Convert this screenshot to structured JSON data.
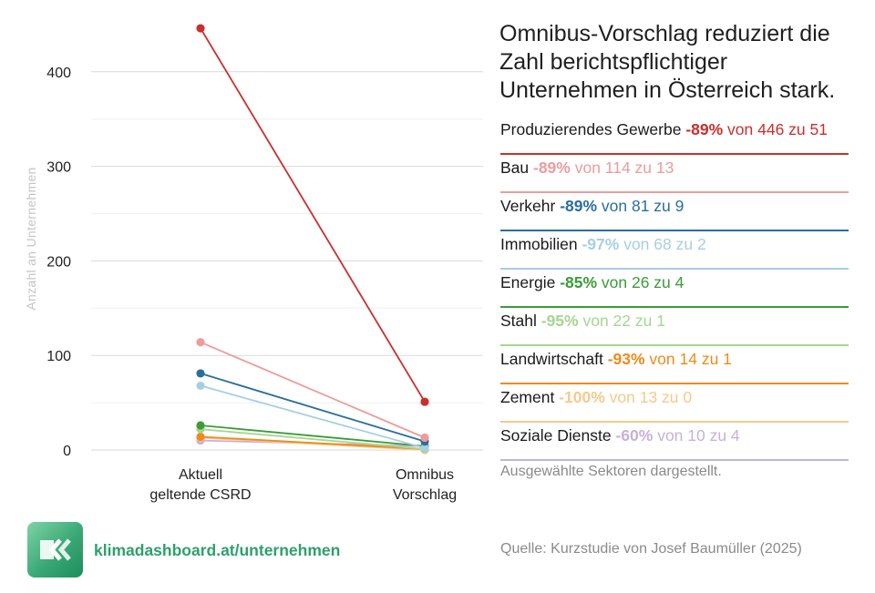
{
  "title": "Omnibus-Vorschlag reduziert die Zahl berichtspflichtiger Unternehmen in Österreich stark.",
  "chart_data": {
    "type": "line",
    "categories": [
      "Aktuell geltende CSRD",
      "Omnibus Vorschlag"
    ],
    "category_lines": [
      [
        "Aktuell",
        "geltende CSRD"
      ],
      [
        "Omnibus",
        "Vorschlag"
      ]
    ],
    "ylabel": "Anzahl an Unternehmen",
    "ylim": [
      0,
      445
    ],
    "yticks": [
      0,
      100,
      200,
      300,
      400
    ],
    "grid": true,
    "series": [
      {
        "name": "Produzierendes Gewerbe",
        "values": [
          446,
          51
        ],
        "color": "#c9302c",
        "pct": "-89%",
        "change": "von 446 zu 51"
      },
      {
        "name": "Bau",
        "values": [
          114,
          13
        ],
        "color": "#ec9c9c",
        "pct": "-89%",
        "change": "von 114 zu 13"
      },
      {
        "name": "Verkehr",
        "values": [
          81,
          9
        ],
        "color": "#2a6e9c",
        "pct": "-89%",
        "change": "von 81 zu 9"
      },
      {
        "name": "Immobilien",
        "values": [
          68,
          2
        ],
        "color": "#a8cee2",
        "pct": "-97%",
        "change": "von 68 zu 2"
      },
      {
        "name": "Energie",
        "values": [
          26,
          4
        ],
        "color": "#3b9c38",
        "pct": "-85%",
        "change": "von 26 zu 4"
      },
      {
        "name": "Stahl",
        "values": [
          22,
          1
        ],
        "color": "#a6d591",
        "pct": "-95%",
        "change": "von 22 zu 1"
      },
      {
        "name": "Landwirtschaft",
        "values": [
          14,
          1
        ],
        "color": "#ef8a1a",
        "pct": "-93%",
        "change": "von 14 zu 1"
      },
      {
        "name": "Zement",
        "values": [
          13,
          0
        ],
        "color": "#f7c98a",
        "pct": "-100%",
        "change": "von 13 zu 0"
      },
      {
        "name": "Soziale Dienste",
        "values": [
          10,
          4
        ],
        "color": "#c7b1d8",
        "pct": "-60%",
        "change": "von 10 zu 4"
      }
    ]
  },
  "note": "Ausgewählte Sektoren dargestellt.",
  "source": "Quelle: Kurzstudie von Josef Baumüller (2025)",
  "footer": {
    "site": "klimadashboard.at/unternehmen",
    "logo_icon": "double-chevron-left-icon"
  }
}
